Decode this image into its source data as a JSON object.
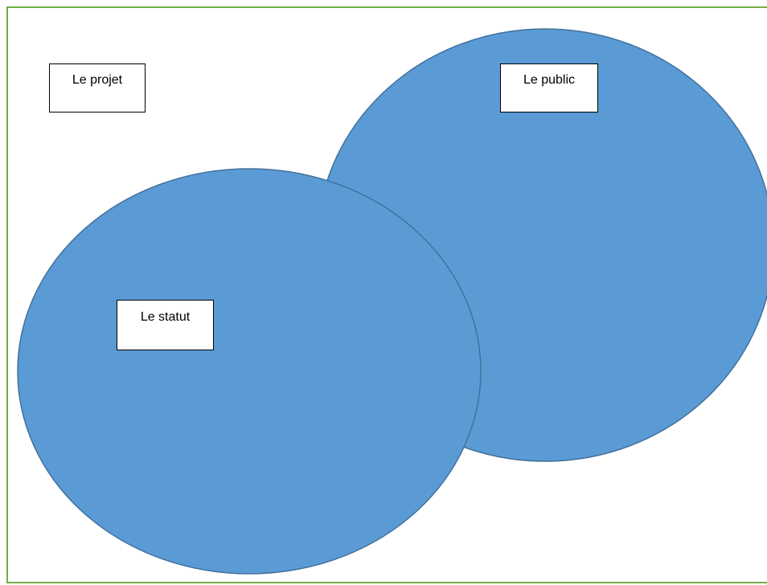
{
  "colors": {
    "page_border": "#70ad47",
    "ellipse_fill": "#5b9bd5",
    "ellipse_stroke": "#41719c",
    "label_border": "#000000"
  },
  "diagram": {
    "shapes": [
      {
        "id": "public-ellipse",
        "kind": "ellipse"
      },
      {
        "id": "statut-ellipse",
        "kind": "ellipse"
      }
    ],
    "labels": {
      "projet": "Le projet",
      "public": "Le public",
      "statut": "Le statut"
    }
  }
}
